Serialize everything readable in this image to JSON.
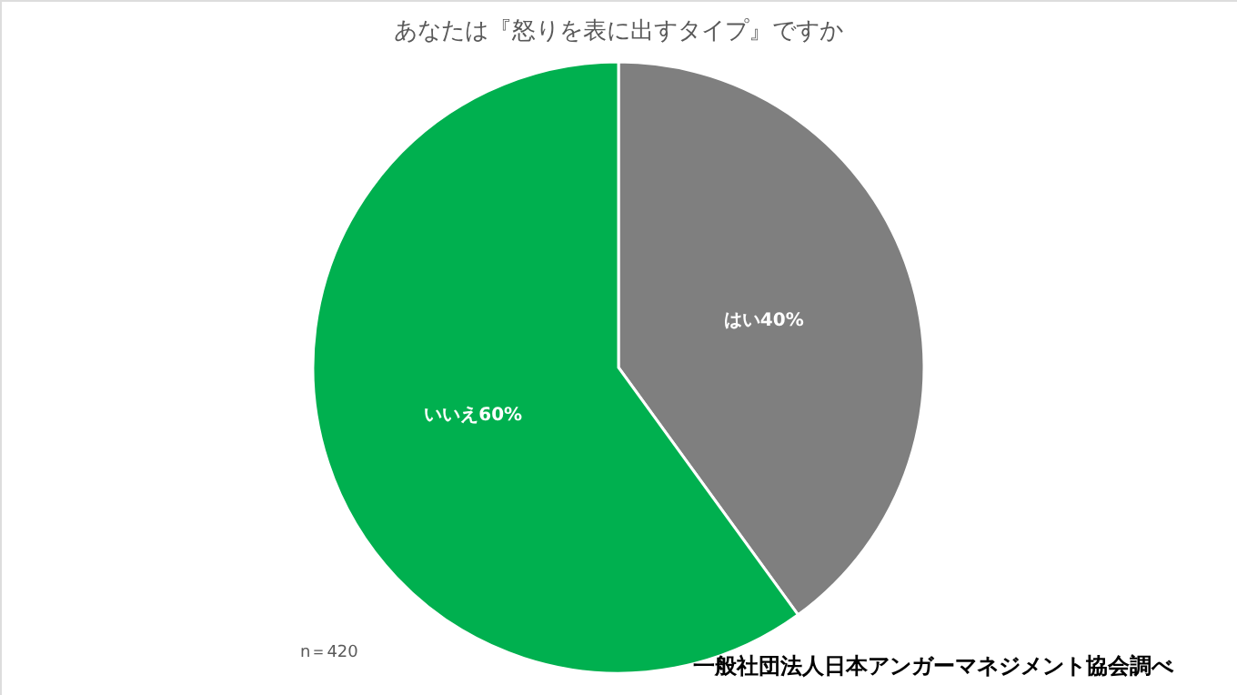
{
  "chart_data": {
    "type": "pie",
    "title": "あなたは『怒りを表に出すタイプ』ですか",
    "categories": [
      "はい",
      "いいえ"
    ],
    "values": [
      40,
      60
    ],
    "colors": [
      "#7f7f7f",
      "#00b04f"
    ],
    "value_labels": [
      "40%",
      "60%"
    ],
    "annotations": [
      "n＝420",
      "一般社団法人日本アンガーマネジメント協会調べ"
    ]
  }
}
